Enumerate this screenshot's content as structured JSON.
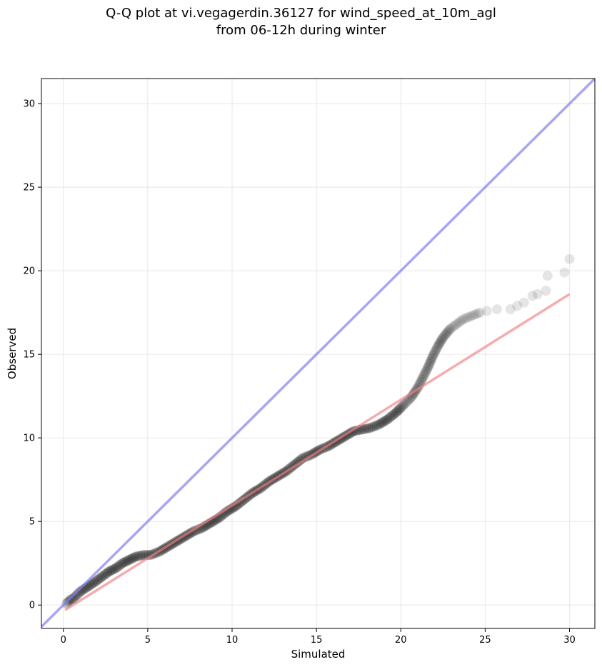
{
  "chart_data": {
    "type": "scatter",
    "title": "Q-Q plot at vi.vegagerdin.36127 for wind_speed_at_10m_agl",
    "subtitle": "from 06-12h during winter",
    "xlabel": "Simulated",
    "ylabel": "Observed",
    "xlim": [
      -1.3,
      31.5
    ],
    "ylim": [
      -1.4,
      31.5
    ],
    "xticks": [
      0,
      5,
      10,
      15,
      20,
      25,
      30
    ],
    "yticks": [
      0,
      5,
      10,
      15,
      20,
      25,
      30
    ],
    "grid": true,
    "series": [
      {
        "kind": "quantile_points",
        "color": "#000000",
        "points": [
          [
            0.2,
            0.1
          ],
          [
            0.4,
            0.3
          ],
          [
            0.6,
            0.4
          ],
          [
            0.8,
            0.6
          ],
          [
            1.0,
            0.8
          ],
          [
            1.3,
            1.0
          ],
          [
            1.6,
            1.2
          ],
          [
            1.9,
            1.4
          ],
          [
            2.3,
            1.7
          ],
          [
            2.7,
            2.0
          ],
          [
            3.1,
            2.2
          ],
          [
            3.5,
            2.5
          ],
          [
            3.9,
            2.7
          ],
          [
            4.3,
            2.9
          ],
          [
            4.8,
            3.0
          ],
          [
            5.2,
            3.0
          ],
          [
            5.7,
            3.2
          ],
          [
            6.2,
            3.5
          ],
          [
            6.7,
            3.8
          ],
          [
            7.2,
            4.1
          ],
          [
            7.7,
            4.4
          ],
          [
            8.2,
            4.6
          ],
          [
            8.7,
            4.9
          ],
          [
            9.2,
            5.2
          ],
          [
            9.7,
            5.6
          ],
          [
            10.2,
            5.9
          ],
          [
            10.7,
            6.3
          ],
          [
            11.2,
            6.7
          ],
          [
            11.7,
            7.0
          ],
          [
            12.2,
            7.4
          ],
          [
            12.7,
            7.7
          ],
          [
            13.2,
            8.0
          ],
          [
            13.7,
            8.4
          ],
          [
            14.2,
            8.8
          ],
          [
            14.7,
            9.0
          ],
          [
            15.2,
            9.3
          ],
          [
            15.7,
            9.5
          ],
          [
            16.2,
            9.8
          ],
          [
            16.7,
            10.1
          ],
          [
            17.2,
            10.4
          ],
          [
            17.7,
            10.5
          ],
          [
            18.2,
            10.6
          ],
          [
            18.7,
            10.8
          ],
          [
            19.2,
            11.1
          ],
          [
            19.7,
            11.5
          ],
          [
            20.2,
            12.0
          ],
          [
            20.6,
            12.4
          ],
          [
            21.0,
            13.0
          ],
          [
            21.3,
            13.6
          ],
          [
            21.6,
            14.2
          ],
          [
            21.9,
            14.9
          ],
          [
            22.2,
            15.5
          ],
          [
            22.5,
            16.0
          ],
          [
            22.9,
            16.5
          ],
          [
            23.3,
            16.8
          ],
          [
            23.7,
            17.1
          ],
          [
            24.2,
            17.3
          ],
          [
            24.7,
            17.5
          ],
          [
            25.1,
            17.6
          ],
          [
            25.7,
            17.7
          ],
          [
            26.5,
            17.7
          ],
          [
            26.9,
            17.9
          ],
          [
            27.3,
            18.1
          ],
          [
            27.8,
            18.5
          ],
          [
            28.1,
            18.6
          ],
          [
            28.6,
            18.8
          ],
          [
            28.7,
            19.7
          ],
          [
            29.7,
            19.9
          ],
          [
            30.0,
            20.7
          ]
        ]
      },
      {
        "kind": "fit_line",
        "color": "#f08080",
        "points": [
          [
            0.1,
            -0.3
          ],
          [
            30.0,
            18.6
          ]
        ]
      },
      {
        "kind": "one_to_one_line",
        "color": "#8080f0",
        "points": [
          [
            -1.3,
            -1.3
          ],
          [
            31.5,
            31.5
          ]
        ]
      }
    ]
  }
}
